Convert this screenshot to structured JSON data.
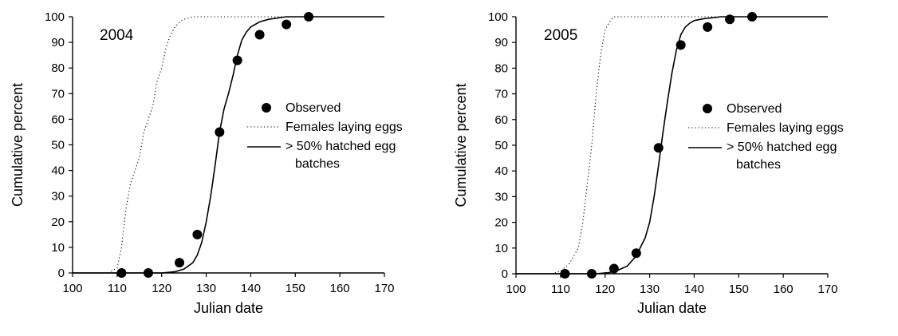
{
  "chart_data": [
    {
      "type": "scatter",
      "title": "2004",
      "xlabel": "Julian date",
      "ylabel": "Cumulative percent",
      "xlim": [
        100,
        170
      ],
      "ylim": [
        0,
        100
      ],
      "x_ticks": [
        "100",
        "110",
        "120",
        "130",
        "140",
        "150",
        "160",
        "170"
      ],
      "y_ticks": [
        "0",
        "10",
        "20",
        "30",
        "40",
        "50",
        "60",
        "70",
        "80",
        "90",
        "100"
      ],
      "grid": false,
      "legend_position": "center-right",
      "legend": {
        "observed": "Observed",
        "laying": "Females laying eggs",
        "hatched_line1": "> 50% hatched egg",
        "hatched_line2": "batches"
      },
      "series": [
        {
          "name": "Observed",
          "style": "markers",
          "x": [
            111,
            117,
            124,
            128,
            133,
            137,
            142,
            148,
            153
          ],
          "y": [
            0,
            0,
            4,
            15,
            55,
            83,
            93,
            97,
            100
          ]
        },
        {
          "name": "Females laying eggs",
          "style": "dotted",
          "x": [
            105,
            108,
            110,
            111,
            112,
            113,
            114,
            115,
            116,
            117,
            118,
            119,
            120,
            121,
            122,
            123,
            124,
            125,
            127,
            130,
            135,
            140,
            143,
            147,
            152
          ],
          "y": [
            0,
            0,
            2,
            10,
            25,
            35,
            40,
            45,
            55,
            60,
            65,
            75,
            80,
            88,
            93,
            96,
            98,
            99,
            100,
            100,
            100,
            100,
            100,
            100,
            100
          ]
        },
        {
          "name": "> 50% hatched egg batches",
          "style": "solid",
          "x": [
            100,
            108,
            115,
            120,
            123,
            125,
            127,
            128,
            129,
            130,
            131,
            132,
            133,
            134,
            135,
            136,
            137,
            138,
            139,
            140,
            142,
            144,
            146,
            148,
            150,
            155,
            160,
            170
          ],
          "y": [
            0,
            0,
            0,
            0,
            0.5,
            1.5,
            4,
            7,
            12,
            20,
            30,
            42,
            55,
            64,
            70,
            77,
            85,
            91,
            94,
            96,
            98,
            99,
            99.5,
            100,
            100,
            100,
            100,
            100
          ]
        }
      ]
    },
    {
      "type": "scatter",
      "title": "2005",
      "xlabel": "Julian date",
      "ylabel": "Cumulative percent",
      "xlim": [
        100,
        170
      ],
      "ylim": [
        0,
        100
      ],
      "x_ticks": [
        "100",
        "110",
        "120",
        "130",
        "140",
        "150",
        "160",
        "170"
      ],
      "y_ticks": [
        "0",
        "10",
        "20",
        "30",
        "40",
        "50",
        "60",
        "70",
        "80",
        "90",
        "100"
      ],
      "grid": false,
      "legend_position": "center-right",
      "legend": {
        "observed": "Observed",
        "laying": "Females laying eggs",
        "hatched_line1": "> 50% hatched egg",
        "hatched_line2": "batches"
      },
      "series": [
        {
          "name": "Observed",
          "style": "markers",
          "x": [
            111,
            117,
            122,
            127,
            132,
            137,
            143,
            148,
            153
          ],
          "y": [
            0,
            0,
            2,
            8,
            49,
            89,
            96,
            99,
            100
          ]
        },
        {
          "name": "Females laying eggs",
          "style": "dotted",
          "x": [
            108,
            110,
            112,
            114,
            115,
            116,
            117,
            118,
            119,
            120,
            121,
            122,
            123,
            124,
            126,
            128,
            130,
            135,
            140,
            145,
            150
          ],
          "y": [
            0,
            1,
            4,
            10,
            20,
            35,
            50,
            70,
            85,
            95,
            98,
            100,
            100,
            100,
            100,
            100,
            100,
            100,
            100,
            100,
            100
          ]
        },
        {
          "name": "> 50% hatched egg batches",
          "style": "solid",
          "x": [
            100,
            110,
            118,
            121,
            123,
            125,
            127,
            129,
            130,
            131,
            132,
            133,
            134,
            135,
            136,
            137,
            138,
            139,
            140,
            142,
            144,
            146,
            148,
            150,
            155,
            160,
            170
          ],
          "y": [
            0,
            0,
            0,
            0.5,
            1.5,
            3,
            7,
            14,
            20,
            30,
            42,
            55,
            67,
            78,
            87,
            93,
            96,
            97.5,
            98.5,
            99.2,
            99.6,
            100,
            100,
            100,
            100,
            100,
            100
          ]
        }
      ]
    }
  ]
}
